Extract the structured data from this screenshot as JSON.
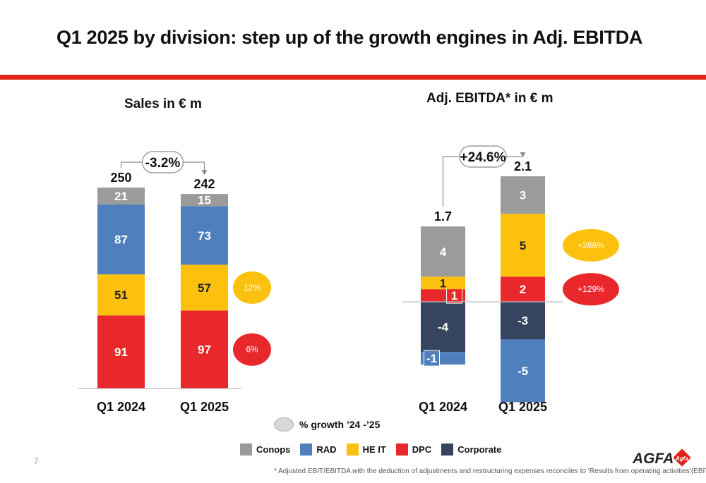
{
  "title": "Q1 2025 by division: step up of the growth engines in Adj. EBITDA",
  "page_number": "7",
  "colors": {
    "Conops": "#9b9b9b",
    "RAD": "#4f7fbd",
    "HE IT": "#fcc10e",
    "DPC": "#e8282b",
    "Corporate": "#36455f",
    "accent_red": "#e2231a"
  },
  "legend": {
    "growth_label": "% growth ’24 -’25",
    "items": [
      {
        "name": "Conops",
        "color": "#9b9b9b"
      },
      {
        "name": "RAD",
        "color": "#4f7fbd"
      },
      {
        "name": "HE IT",
        "color": "#fcc10e"
      },
      {
        "name": "DPC",
        "color": "#e8282b"
      },
      {
        "name": "Corporate",
        "color": "#36455f"
      }
    ]
  },
  "footnote": "* Adjusted EBIT/EBITDA with the deduction of adjustments and restructuring expenses reconciles to ‘Results from operating activities’(EBIT)/EBITDA",
  "logo": {
    "text": "AGFA",
    "mark": "Agfa"
  },
  "chart_data": [
    {
      "type": "bar",
      "stacked": true,
      "title": "Sales in € m",
      "categories": [
        "Q1 2024",
        "Q1 2025"
      ],
      "series": [
        {
          "name": "DPC",
          "values": [
            91,
            97
          ]
        },
        {
          "name": "HE IT",
          "values": [
            51,
            57
          ]
        },
        {
          "name": "RAD",
          "values": [
            87,
            73
          ]
        },
        {
          "name": "Conops",
          "values": [
            21,
            15
          ]
        }
      ],
      "totals": [
        "250",
        "242"
      ],
      "change_label": "-3.2%",
      "growth_badges": [
        {
          "series": "HE IT",
          "label": "12%"
        },
        {
          "series": "DPC",
          "label": "6%"
        }
      ],
      "ylim": [
        0,
        250
      ]
    },
    {
      "type": "bar",
      "stacked": true,
      "title": "Adj. EBITDA* in € m",
      "categories": [
        "Q1 2024",
        "Q1 2025"
      ],
      "series": [
        {
          "name": "Corporate",
          "values": [
            -4,
            -3
          ]
        },
        {
          "name": "RAD",
          "values": [
            -1,
            -5
          ]
        },
        {
          "name": "DPC",
          "values": [
            1,
            2
          ]
        },
        {
          "name": "HE IT",
          "values": [
            1,
            5
          ]
        },
        {
          "name": "Conops",
          "values": [
            4,
            3
          ]
        }
      ],
      "totals": [
        "1.7",
        "2.1"
      ],
      "change_label": "+24.6%",
      "growth_badges": [
        {
          "series": "HE IT",
          "label": "+288%"
        },
        {
          "series": "DPC",
          "label": "+129%"
        }
      ],
      "ylim": [
        -8,
        10
      ]
    }
  ]
}
